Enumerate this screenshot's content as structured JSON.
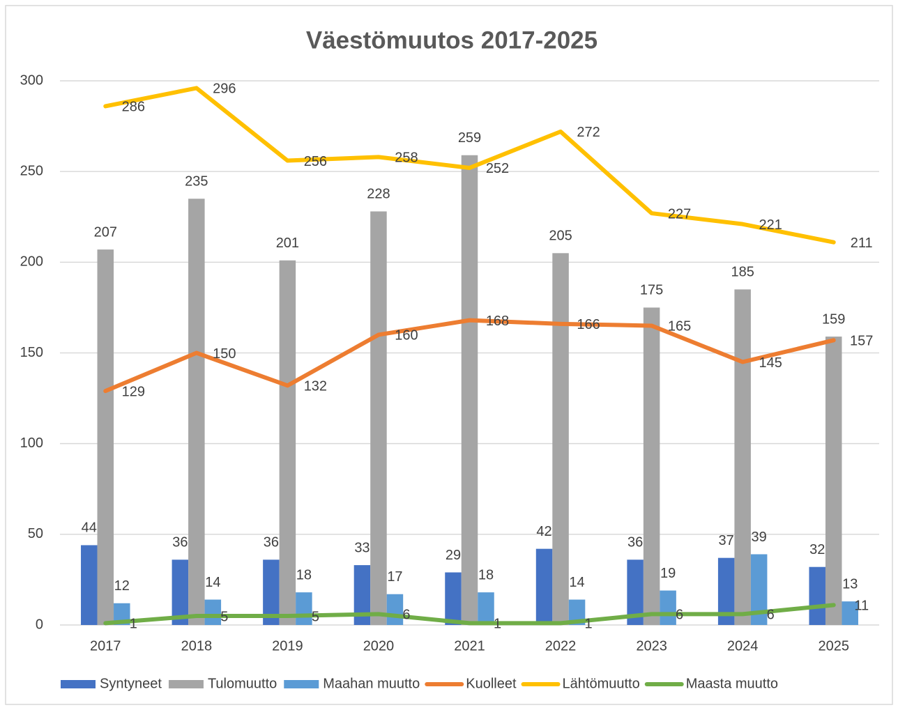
{
  "chart_data": {
    "type": "bar",
    "title": "Väestömuutos 2017-2025",
    "categories": [
      "2017",
      "2018",
      "2019",
      "2020",
      "2021",
      "2022",
      "2023",
      "2024",
      "2025"
    ],
    "series": [
      {
        "name": "Syntyneet",
        "type": "bar",
        "color": "#4472c4",
        "values": [
          44,
          36,
          36,
          33,
          29,
          42,
          36,
          37,
          32
        ]
      },
      {
        "name": "Tulomuutto",
        "type": "bar",
        "color": "#a5a5a5",
        "values": [
          207,
          235,
          201,
          228,
          259,
          205,
          175,
          185,
          159
        ]
      },
      {
        "name": "Maahan muutto",
        "type": "bar",
        "color": "#5b9bd5",
        "values": [
          12,
          14,
          18,
          17,
          18,
          14,
          19,
          39,
          13
        ]
      },
      {
        "name": "Kuolleet",
        "type": "line",
        "color": "#ed7d31",
        "values": [
          129,
          150,
          132,
          160,
          168,
          166,
          165,
          145,
          157
        ]
      },
      {
        "name": "Lähtömuutto",
        "type": "line",
        "color": "#ffc000",
        "values": [
          286,
          296,
          256,
          258,
          252,
          272,
          227,
          221,
          211
        ]
      },
      {
        "name": "Maasta muutto",
        "type": "line",
        "color": "#70ad47",
        "values": [
          1,
          5,
          5,
          6,
          1,
          1,
          6,
          6,
          11
        ]
      }
    ],
    "ylim": [
      0,
      300
    ],
    "yticks": [
      0,
      50,
      100,
      150,
      200,
      250,
      300
    ],
    "grid": true,
    "legend": "bottom"
  }
}
